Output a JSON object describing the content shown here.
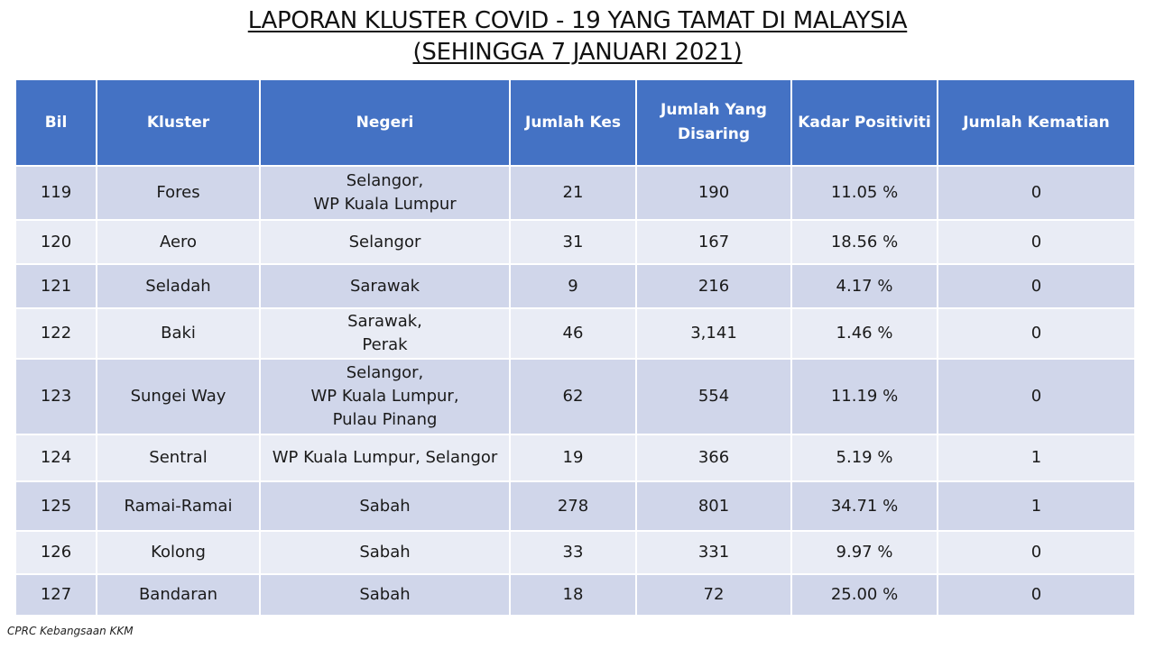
{
  "title": {
    "line1": "LAPORAN KLUSTER COVID - 19 YANG TAMAT DI MALAYSIA",
    "line2": "(SEHINGGA 7 JANUARI 2021)"
  },
  "table": {
    "headers": [
      "Bil",
      "Kluster",
      "Negeri",
      "Jumlah Kes",
      "Jumlah Yang\nDisaring",
      "Kadar Positiviti",
      "Jumlah Kematian"
    ],
    "rows": [
      [
        "119",
        "Fores",
        "Selangor,\nWP Kuala Lumpur",
        "21",
        "190",
        "11.05 %",
        "0"
      ],
      [
        "120",
        "Aero",
        "Selangor",
        "31",
        "167",
        "18.56 %",
        "0"
      ],
      [
        "121",
        "Seladah",
        "Sarawak",
        "9",
        "216",
        "4.17 %",
        "0"
      ],
      [
        "122",
        "Baki",
        "Sarawak,\nPerak",
        "46",
        "3,141",
        "1.46 %",
        "0"
      ],
      [
        "123",
        "Sungei Way",
        "Selangor,\nWP Kuala Lumpur,\nPulau Pinang",
        "62",
        "554",
        "11.19 %",
        "0"
      ],
      [
        "124",
        "Sentral",
        "WP Kuala Lumpur, Selangor",
        "19",
        "366",
        "5.19 %",
        "1"
      ],
      [
        "125",
        "Ramai-Ramai",
        "Sabah",
        "278",
        "801",
        "34.71 %",
        "1"
      ],
      [
        "126",
        "Kolong",
        "Sabah",
        "33",
        "331",
        "9.97 %",
        "0"
      ],
      [
        "127",
        "Bandaran",
        "Sabah",
        "18",
        "72",
        "25.00 %",
        "0"
      ]
    ]
  },
  "footer": "CPRC Kebangsaan KKM",
  "colors": {
    "header_bg": "#4472c4",
    "row_dark": "#d0d6ea",
    "row_light": "#e9ecf5"
  }
}
